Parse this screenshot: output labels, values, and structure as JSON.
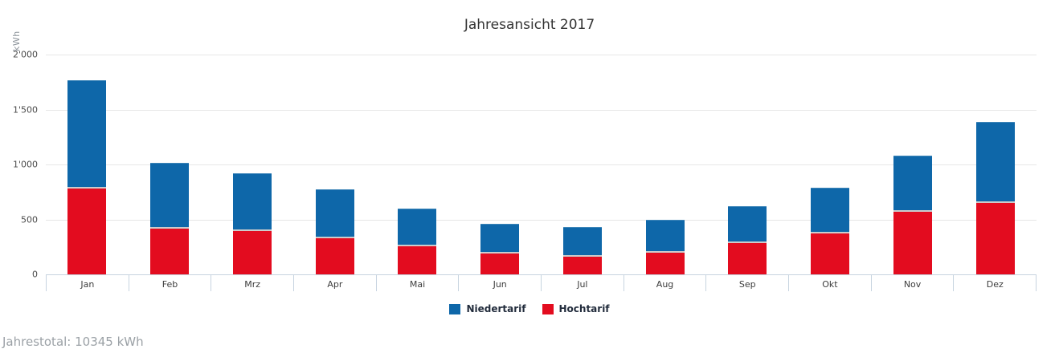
{
  "chart": {
    "title": "Jahresansicht 2017",
    "y_axis_title": "kWh"
  },
  "chart_data": {
    "type": "bar",
    "stacked": true,
    "title": "Jahresansicht 2017",
    "xlabel": "",
    "ylabel": "kWh",
    "categories": [
      "Jan",
      "Feb",
      "Mrz",
      "Apr",
      "Mai",
      "Jun",
      "Jul",
      "Aug",
      "Sep",
      "Okt",
      "Nov",
      "Dez"
    ],
    "series": [
      {
        "name": "Niedertarif",
        "color": "#0e67a9",
        "values": [
          970,
          584,
          505,
          431,
          323,
          255,
          258,
          282,
          326,
          407,
          498,
          720
        ]
      },
      {
        "name": "Hochtarif",
        "color": "#e30c1f",
        "values": [
          797,
          434,
          412,
          347,
          272,
          206,
          174,
          213,
          296,
          385,
          582,
          668
        ]
      }
    ],
    "stack_order_bottom_to_top": [
      "Hochtarif",
      "Niedertarif"
    ],
    "monthly_totals": [
      1767,
      1018,
      917,
      778,
      595,
      461,
      432,
      495,
      622,
      792,
      1080,
      1388
    ],
    "ylim": [
      0,
      2000
    ],
    "yticks": [
      {
        "value": 2000,
        "label": "2'000"
      },
      {
        "value": 1500,
        "label": "1'500"
      },
      {
        "value": 1000,
        "label": "1'000"
      },
      {
        "value": 500,
        "label": "500"
      },
      {
        "value": 0,
        "label": "0"
      }
    ],
    "grid": true,
    "legend_position": "bottom"
  },
  "footer": {
    "total_label": "Jahrestotal: 10345 kWh"
  }
}
